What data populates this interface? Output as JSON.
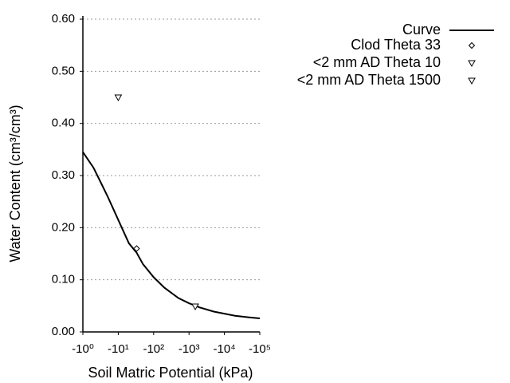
{
  "chart_data": {
    "type": "line",
    "x_label": "Soil Matric Potential (kPa)",
    "y_label": "Water Content (cm³/cm³)",
    "xscale": "log",
    "xlim": [
      -1,
      -100000
    ],
    "xticks": [
      {
        "value": -1,
        "label": "-10⁰"
      },
      {
        "value": -10,
        "label": "-10¹"
      },
      {
        "value": -100,
        "label": "-10²"
      },
      {
        "value": -1000,
        "label": "-10³"
      },
      {
        "value": -10000,
        "label": "-10⁴"
      },
      {
        "value": -100000,
        "label": "-10⁵"
      }
    ],
    "ylim": [
      0,
      0.6
    ],
    "yticks": [
      {
        "value": 0,
        "label": "0.00"
      },
      {
        "value": 0.1,
        "label": "0.10"
      },
      {
        "value": 0.2,
        "label": "0.20"
      },
      {
        "value": 0.3,
        "label": "0.30"
      },
      {
        "value": 0.4,
        "label": "0.40"
      },
      {
        "value": 0.5,
        "label": "0.50"
      },
      {
        "value": 0.6,
        "label": "0.60"
      }
    ],
    "grid": true,
    "legend": "top-right",
    "series": [
      {
        "name": "Curve",
        "kind": "line",
        "color": "#000000",
        "x": [
          -1,
          -2,
          -5,
          -10,
          -20,
          -33,
          -50,
          -100,
          -200,
          -500,
          -1000,
          -2000,
          -5000,
          -10000,
          -20000,
          -50000,
          -100000
        ],
        "values": [
          0.345,
          0.315,
          0.26,
          0.215,
          0.17,
          0.152,
          0.13,
          0.105,
          0.085,
          0.065,
          0.055,
          0.047,
          0.039,
          0.035,
          0.031,
          0.028,
          0.026
        ]
      },
      {
        "name": "Clod Theta 33",
        "kind": "scatter",
        "marker": "diamond",
        "color": "#000000",
        "x": [
          -33
        ],
        "values": [
          0.16
        ]
      },
      {
        "name": "<2 mm AD Theta 10",
        "kind": "scatter",
        "marker": "triangle-down",
        "color": "#000000",
        "x": [
          -10
        ],
        "values": [
          0.45
        ]
      },
      {
        "name": "<2 mm AD Theta 1500",
        "kind": "scatter",
        "marker": "triangle-down",
        "color": "#000000",
        "x": [
          -1500
        ],
        "values": [
          0.049
        ]
      }
    ]
  }
}
